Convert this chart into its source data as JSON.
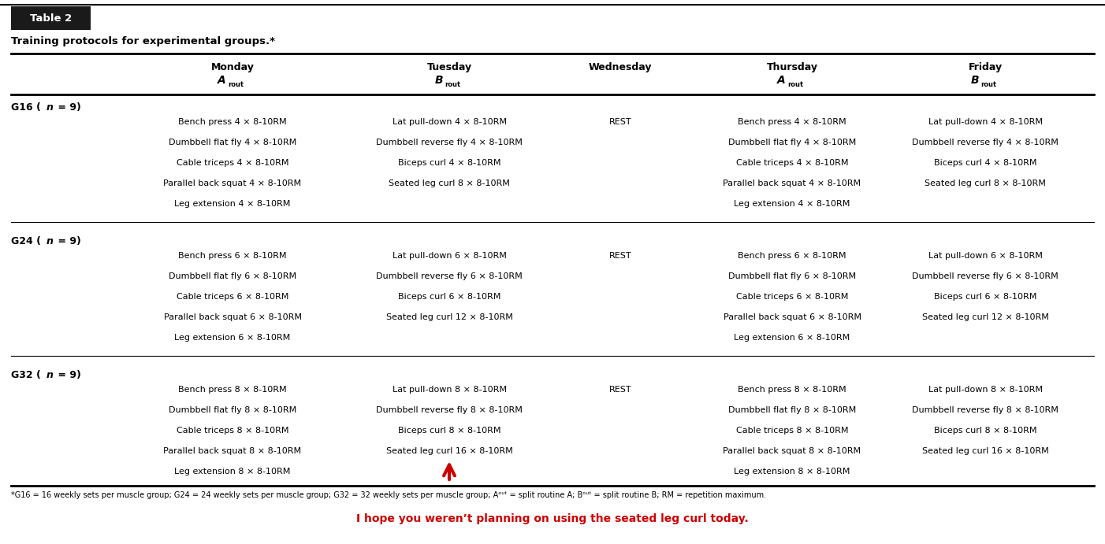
{
  "title_box": "Table 2",
  "subtitle": "Training protocols for experimental groups.*",
  "groups": [
    {
      "label": "G16 (",
      "label_italic": "n",
      "label_end": " = 9)",
      "monday": [
        "Bench press 4 × 8-10RM",
        "Dumbbell flat fly 4 × 8-10RM",
        "Cable triceps 4 × 8-10RM",
        "Parallel back squat 4 × 8-10RM",
        "Leg extension 4 × 8-10RM"
      ],
      "tuesday": [
        "Lat pull-down 4 × 8-10RM",
        "Dumbbell reverse fly 4 × 8-10RM",
        "Biceps curl 4 × 8-10RM",
        "Seated leg curl 8 × 8-10RM"
      ],
      "wednesday": "REST",
      "thursday": [
        "Bench press 4 × 8-10RM",
        "Dumbbell flat fly 4 × 8-10RM",
        "Cable triceps 4 × 8-10RM",
        "Parallel back squat 4 × 8-10RM",
        "Leg extension 4 × 8-10RM"
      ],
      "friday": [
        "Lat pull-down 4 × 8-10RM",
        "Dumbbell reverse fly 4 × 8-10RM",
        "Biceps curl 4 × 8-10RM",
        "Seated leg curl 8 × 8-10RM"
      ]
    },
    {
      "label": "G24 (",
      "label_italic": "n",
      "label_end": " = 9)",
      "monday": [
        "Bench press 6 × 8-10RM",
        "Dumbbell flat fly 6 × 8-10RM",
        "Cable triceps 6 × 8-10RM",
        "Parallel back squat 6 × 8-10RM",
        "Leg extension 6 × 8-10RM"
      ],
      "tuesday": [
        "Lat pull-down 6 × 8-10RM",
        "Dumbbell reverse fly 6 × 8-10RM",
        "Biceps curl 6 × 8-10RM",
        "Seated leg curl 12 × 8-10RM"
      ],
      "wednesday": "REST",
      "thursday": [
        "Bench press 6 × 8-10RM",
        "Dumbbell flat fly 6 × 8-10RM",
        "Cable triceps 6 × 8-10RM",
        "Parallel back squat 6 × 8-10RM",
        "Leg extension 6 × 8-10RM"
      ],
      "friday": [
        "Lat pull-down 6 × 8-10RM",
        "Dumbbell reverse fly 6 × 8-10RM",
        "Biceps curl 6 × 8-10RM",
        "Seated leg curl 12 × 8-10RM"
      ]
    },
    {
      "label": "G32 (",
      "label_italic": "n",
      "label_end": " = 9)",
      "monday": [
        "Bench press 8 × 8-10RM",
        "Dumbbell flat fly 8 × 8-10RM",
        "Cable triceps 8 × 8-10RM",
        "Parallel back squat 8 × 8-10RM",
        "Leg extension 8 × 8-10RM"
      ],
      "tuesday": [
        "Lat pull-down 8 × 8-10RM",
        "Dumbbell reverse fly 8 × 8-10RM",
        "Biceps curl 8 × 8-10RM",
        "Seated leg curl 16 × 8-10RM"
      ],
      "wednesday": "REST",
      "thursday": [
        "Bench press 8 × 8-10RM",
        "Dumbbell flat fly 8 × 8-10RM",
        "Cable triceps 8 × 8-10RM",
        "Parallel back squat 8 × 8-10RM",
        "Leg extension 8 × 8-10RM"
      ],
      "friday": [
        "Lat pull-down 8 × 8-10RM",
        "Dumbbell reverse fly 8 × 8-10RM",
        "Biceps curl 8 × 8-10RM",
        "Seated leg curl 16 × 8-10RM"
      ]
    }
  ],
  "footnote": "*G16 = 16 weekly sets per muscle group; G24 = 24 weekly sets per muscle group; G32 = 32 weekly sets per muscle group; Aᵒᵘᵗ = split routine A; Bᵒᵘᵗ = split routine B; RM = repetition maximum.",
  "red_note": "I hope you weren’t planning on using the seated leg curl today.",
  "bg_color": "#ffffff",
  "header_bg": "#1a1a1a",
  "header_text_color": "#ffffff",
  "body_text_color": "#000000",
  "line_color": "#000000",
  "red_color": "#cc0000"
}
